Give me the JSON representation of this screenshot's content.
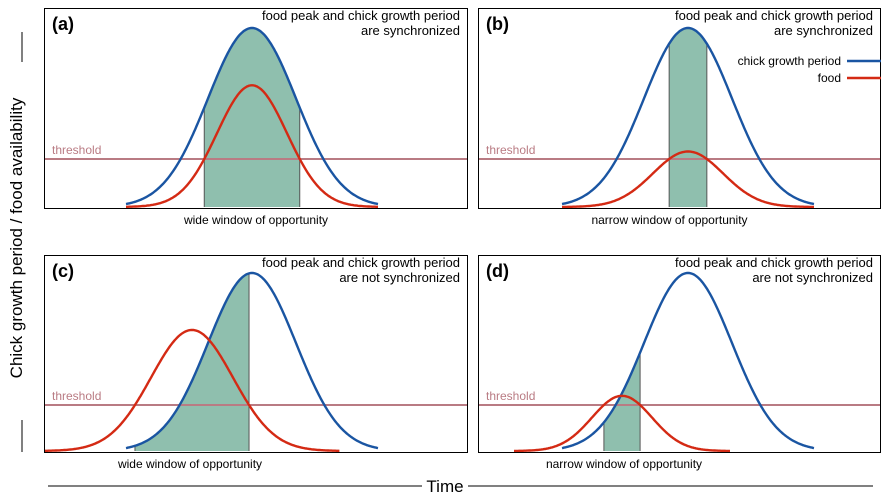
{
  "axes": {
    "ylabel": "Chick growth period / food availability",
    "xlabel": "Time"
  },
  "threshold_label": "threshold",
  "legend": {
    "chick": "chick growth period",
    "food": "food"
  },
  "colors": {
    "chick": "#1a55a2",
    "food": "#d42a14",
    "window": "#8fbfae",
    "threshold": "#b97b83"
  },
  "panels": [
    {
      "id": "a",
      "tag": "(a)",
      "caption_line1": "food peak and chick growth period",
      "caption_line2": "are synchronized",
      "window_label": "wide window of opportunity",
      "chick_peak_time": 6.0,
      "chick_peak_height": 1.0,
      "food_peak_time": 6.0,
      "food_peak_height": 0.68
    },
    {
      "id": "b",
      "tag": "(b)",
      "caption_line1": "food peak and chick growth period",
      "caption_line2": "are synchronized",
      "window_label": "narrow window of opportunity",
      "chick_peak_time": 6.0,
      "chick_peak_height": 1.0,
      "food_peak_time": 6.0,
      "food_peak_height": 0.31
    },
    {
      "id": "c",
      "tag": "(c)",
      "caption_line1": "food peak and chick growth period",
      "caption_line2": "are not synchronized",
      "window_label": "wide window of opportunity",
      "chick_peak_time": 6.0,
      "chick_peak_height": 1.0,
      "food_peak_time": 4.2,
      "food_peak_height": 0.68
    },
    {
      "id": "d",
      "tag": "(d)",
      "caption_line1": "food peak and chick growth period",
      "caption_line2": "are not synchronized",
      "window_label": "narrow window of opportunity",
      "chick_peak_time": 6.0,
      "chick_peak_height": 1.0,
      "food_peak_time": 4.2,
      "food_peak_height": 0.31
    }
  ]
}
